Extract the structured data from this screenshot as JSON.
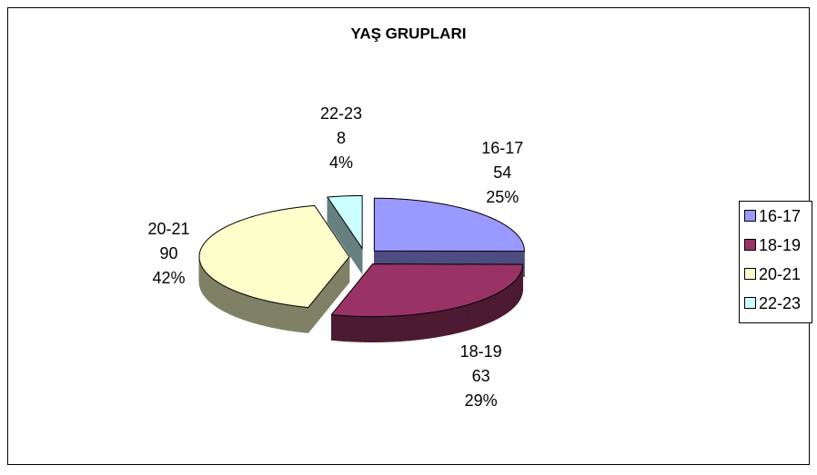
{
  "chart_data": {
    "type": "pie3d",
    "title": "YAŞ GRUPLARI",
    "categories": [
      "16-17",
      "18-19",
      "20-21",
      "22-23"
    ],
    "values": [
      54,
      63,
      90,
      8
    ],
    "percent_labels": [
      "25%",
      "29%",
      "42%",
      "4%"
    ],
    "colors": [
      "#9999ff",
      "#993366",
      "#ffffcc",
      "#ccffff"
    ],
    "legend": "right"
  }
}
